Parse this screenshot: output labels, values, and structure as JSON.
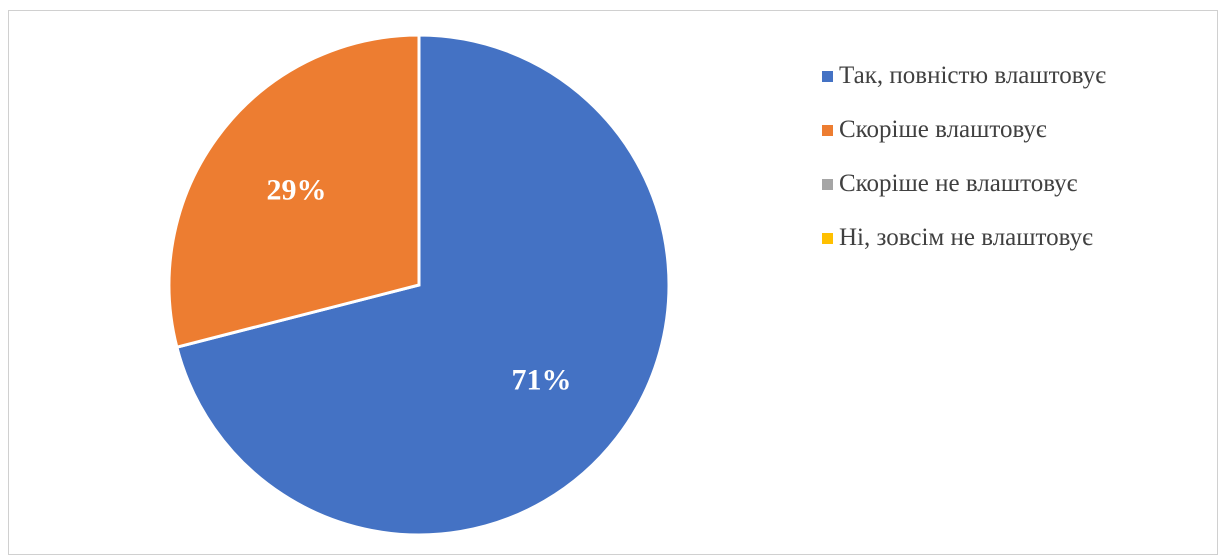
{
  "title": "",
  "chart_data": {
    "type": "pie",
    "title": "",
    "categories": [
      "Так, повністю влаштовує",
      "Скоріше влаштовує",
      "Скоріше не влаштовує",
      "Ні, зовсім не влаштовує"
    ],
    "values": [
      71,
      29,
      0,
      0
    ],
    "data_labels": [
      "71%",
      "29%",
      "",
      ""
    ],
    "colors": [
      "#4472C4",
      "#ED7D31",
      "#A5A5A5",
      "#FFC000"
    ],
    "legend_position": "right"
  },
  "legend": {
    "items": [
      {
        "label": "Так, повністю влаштовує",
        "color": "#4472C4"
      },
      {
        "label": "Скоріше влаштовує",
        "color": "#ED7D31"
      },
      {
        "label": "Скоріше не влаштовує",
        "color": "#A5A5A5"
      },
      {
        "label": "Ні, зовсім не влаштовує",
        "color": "#FFC000"
      }
    ]
  }
}
